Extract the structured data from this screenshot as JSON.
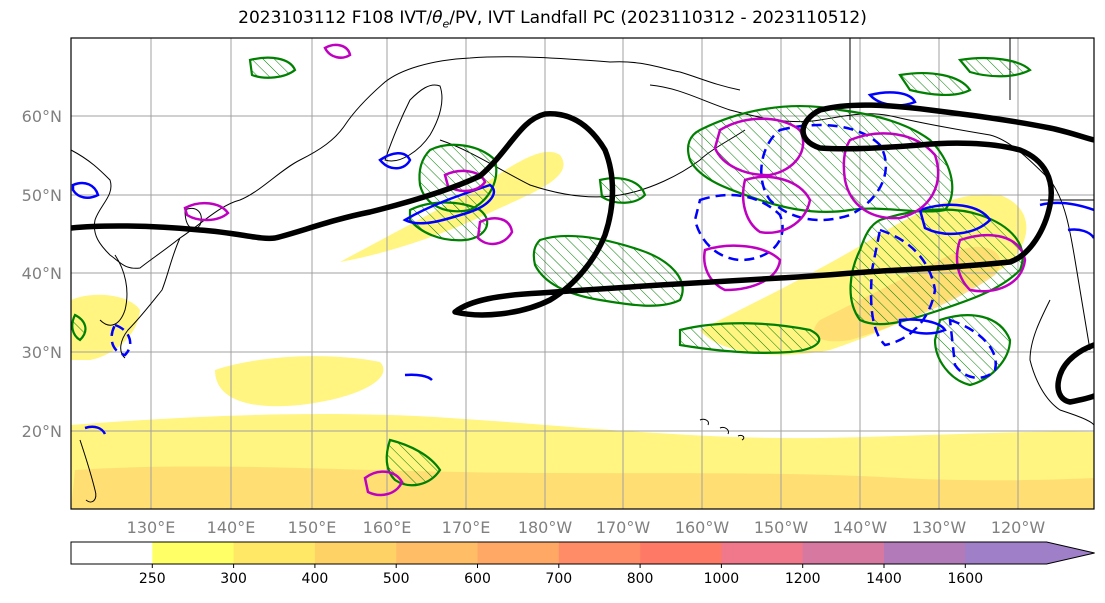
{
  "title_prefix": "2023103112 F108 IVT/",
  "title_theta": "θ",
  "title_theta_sub": "e",
  "title_suffix": "/PV, IVT Landfall PC (2023110312 - 2023110512)",
  "lat_labels": [
    "60°N",
    "50°N",
    "40°N",
    "30°N",
    "20°N"
  ],
  "lon_labels": [
    "130°E",
    "140°E",
    "150°E",
    "160°E",
    "170°E",
    "180°W",
    "170°W",
    "160°W",
    "150°W",
    "140°W",
    "130°W",
    "120°W"
  ],
  "colorbar": {
    "levels": [
      "250",
      "300",
      "400",
      "500",
      "600",
      "700",
      "800",
      "1000",
      "1200",
      "1400",
      "1600"
    ],
    "colors": [
      "#ffffff",
      "#ffff66",
      "#ffe866",
      "#ffd266",
      "#ffbe66",
      "#ffa866",
      "#ff8c66",
      "#ff7a66",
      "#f0788a",
      "#d678a0",
      "#b27ab8",
      "#9f80c8"
    ]
  },
  "colors": {
    "ivt_yellow": "#fff580",
    "ivt_orange": "#ffd870",
    "pv_contour": "#000000",
    "green_contour": "#008000",
    "blue_contour": "#0000ff",
    "magenta_contour": "#c000c0",
    "coastline": "#000000",
    "grid": "#a0a0a0"
  }
}
